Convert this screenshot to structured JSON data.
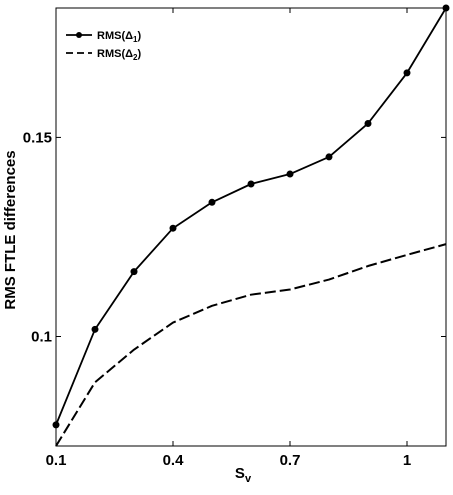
{
  "chart_data": {
    "type": "line",
    "xlabel": "S",
    "xlabel_sub": "v",
    "ylabel": "RMS FTLE differences",
    "xlim": [
      0.1,
      1.1
    ],
    "ylim": [
      0.0725,
      0.1825
    ],
    "xticks": [
      {
        "value": 0.1,
        "label": "0.1"
      },
      {
        "value": 0.4,
        "label": "0.4"
      },
      {
        "value": 0.7,
        "label": "0.7"
      },
      {
        "value": 1.0,
        "label": "1"
      }
    ],
    "yticks": [
      {
        "value": 0.1,
        "label": "0.1"
      },
      {
        "value": 0.15,
        "label": "0.15"
      }
    ],
    "grid": false,
    "legend_position": "top-left",
    "series": [
      {
        "name": "RMS(Δ1)",
        "name_prefix": "RMS(",
        "name_symbol": "Δ",
        "name_sub": "1",
        "name_suffix": ")",
        "style": "solid-markers",
        "color": "#000000",
        "x": [
          0.1,
          0.2,
          0.3,
          0.4,
          0.5,
          0.6,
          0.7,
          0.8,
          0.9,
          1.0,
          1.1
        ],
        "y": [
          0.0778,
          0.1018,
          0.1163,
          0.1272,
          0.1337,
          0.1383,
          0.1408,
          0.1451,
          0.1535,
          0.1662,
          0.1825
        ]
      },
      {
        "name": "RMS(Δ2)",
        "name_prefix": "RMS(",
        "name_symbol": "Δ",
        "name_sub": "2",
        "name_suffix": ")",
        "style": "dashed",
        "color": "#000000",
        "x": [
          0.1,
          0.2,
          0.3,
          0.4,
          0.5,
          0.6,
          0.7,
          0.8,
          0.9,
          1.0,
          1.1
        ],
        "y": [
          0.0725,
          0.0885,
          0.0967,
          0.1035,
          0.1077,
          0.1105,
          0.1118,
          0.1143,
          0.1177,
          0.1205,
          0.1232
        ]
      }
    ]
  }
}
